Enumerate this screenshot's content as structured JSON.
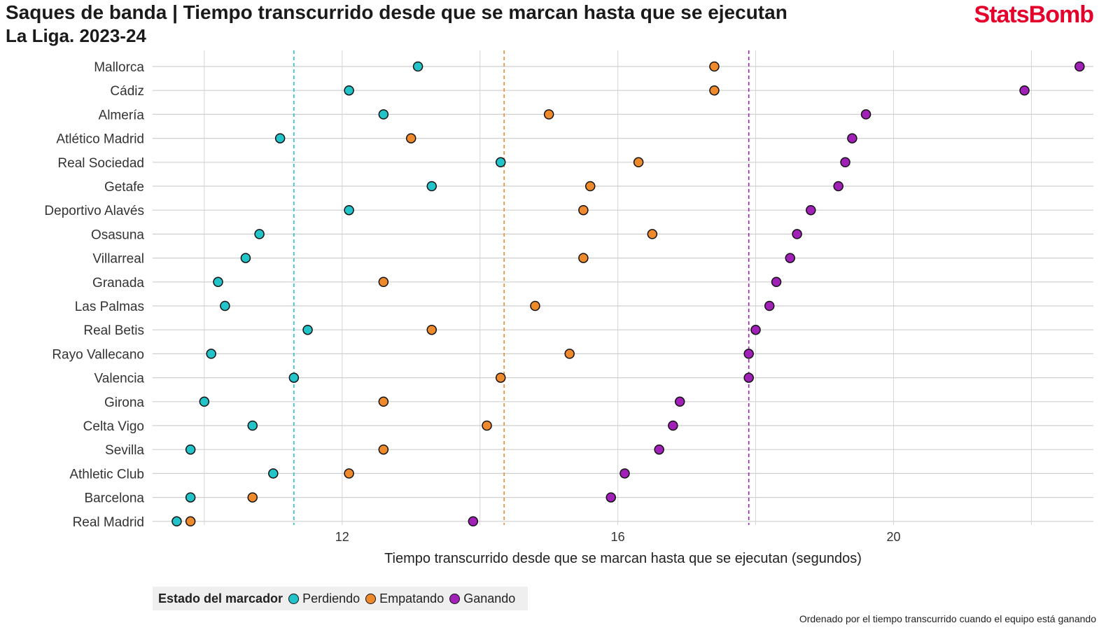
{
  "header": {
    "title": "Saques de banda | Tiempo transcurrido desde que se marcan hasta que se ejecutan",
    "subtitle": "La Liga. 2023-24",
    "brand": "StatsBomb"
  },
  "legend": {
    "title": "Estado del marcador",
    "items": [
      {
        "label": "Perdiendo",
        "color": "#22c3c9"
      },
      {
        "label": "Empatando",
        "color": "#ef8a2c"
      },
      {
        "label": "Ganando",
        "color": "#a020b8"
      }
    ]
  },
  "footer_note": "Ordenado por el tiempo transcurrido cuando el equipo está ganando",
  "chart_data": {
    "type": "scatter",
    "title": "Saques de banda | Tiempo transcurrido desde que se marcan hasta que se ejecutan",
    "subtitle": "La Liga. 2023-24",
    "xlabel": "Tiempo transcurrido desde que se marcan hasta que se ejecutan (segundos)",
    "ylabel": "",
    "xlim": [
      9.25,
      22.9
    ],
    "xticks": [
      12,
      16,
      20
    ],
    "grid": true,
    "legend_placement": "bottom-left",
    "categories": [
      "Mallorca",
      "Cádiz",
      "Almería",
      "Atlético Madrid",
      "Real Sociedad",
      "Getafe",
      "Deportivo Alavés",
      "Osasuna",
      "Villarreal",
      "Granada",
      "Las Palmas",
      "Real Betis",
      "Rayo Vallecano",
      "Valencia",
      "Girona",
      "Celta Vigo",
      "Sevilla",
      "Athletic Club",
      "Barcelona",
      "Real Madrid"
    ],
    "series": [
      {
        "name": "Perdiendo",
        "color": "#22c3c9",
        "values": [
          13.1,
          12.1,
          12.6,
          11.1,
          14.3,
          13.3,
          12.1,
          10.8,
          10.6,
          10.2,
          10.3,
          11.5,
          10.1,
          11.3,
          10.0,
          10.7,
          9.8,
          11.0,
          9.8,
          9.6
        ]
      },
      {
        "name": "Empatando",
        "color": "#ef8a2c",
        "values": [
          17.4,
          17.4,
          15.0,
          13.0,
          16.3,
          15.6,
          15.5,
          16.5,
          15.5,
          12.6,
          14.8,
          13.3,
          15.3,
          14.3,
          12.6,
          14.1,
          12.6,
          12.1,
          10.7,
          9.8
        ]
      },
      {
        "name": "Ganando",
        "color": "#a020b8",
        "values": [
          22.7,
          21.9,
          19.6,
          19.4,
          19.3,
          19.2,
          18.8,
          18.6,
          18.5,
          18.3,
          18.2,
          18.0,
          17.9,
          17.9,
          16.9,
          16.8,
          16.6,
          16.1,
          15.9,
          13.9
        ]
      }
    ],
    "reference_lines": [
      {
        "series": "Perdiendo",
        "value": 11.3,
        "color": "#22c3c9",
        "style": "dashed"
      },
      {
        "series": "Empatando",
        "value": 14.35,
        "color": "#ef8a2c",
        "style": "dashed"
      },
      {
        "series": "Ganando",
        "value": 17.9,
        "color": "#a020b8",
        "style": "dashed"
      }
    ]
  }
}
